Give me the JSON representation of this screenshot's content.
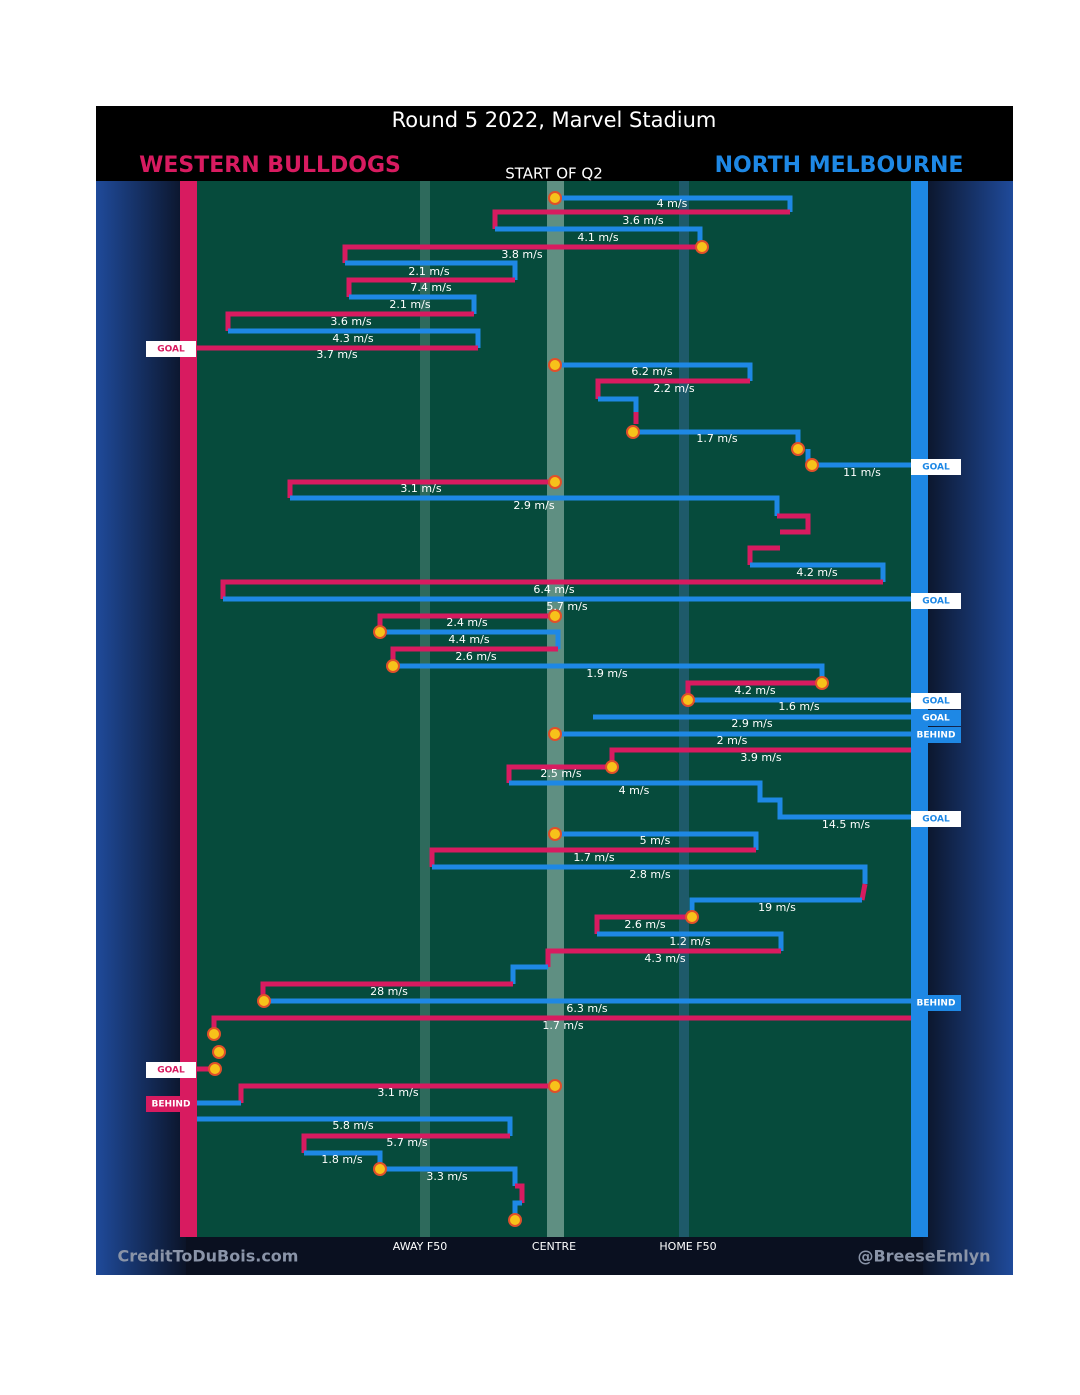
{
  "header": {
    "title": "Round 5 2022, Marvel Stadium",
    "left_team": "WESTERN BULLDOGS",
    "right_team": "NORTH MELBOURNE",
    "start": "START OF Q2"
  },
  "axis_labels": [
    "AWAY F50",
    "CENTRE",
    "HOME F50"
  ],
  "footer": {
    "left": "CreditToDuBois.com",
    "right": "@BreeseEmlyn"
  },
  "speeds": [
    "4 m/s",
    "3.6 m/s",
    "4.1 m/s",
    "3.8 m/s",
    "2.1 m/s",
    "7.4 m/s",
    "2.1 m/s",
    "3.6 m/s",
    "4.3 m/s",
    "3.7 m/s",
    "6.2 m/s",
    "2.2 m/s",
    "1.7 m/s",
    "11 m/s",
    "3.1 m/s",
    "2.9 m/s",
    "4.2 m/s",
    "6.4 m/s",
    "5.7 m/s",
    "2.4 m/s",
    "4.4 m/s",
    "2.6 m/s",
    "1.9 m/s",
    "4.2 m/s",
    "1.6 m/s",
    "2.9 m/s",
    "2 m/s",
    "3.9 m/s",
    "2.5 m/s",
    "4 m/s",
    "14.5 m/s",
    "5 m/s",
    "1.7 m/s",
    "2.8 m/s",
    "19 m/s",
    "2.6 m/s",
    "1.2 m/s",
    "4.3 m/s",
    "28 m/s",
    "6.3 m/s",
    "1.7 m/s",
    "3.1 m/s",
    "5.8 m/s",
    "5.7 m/s",
    "1.8 m/s",
    "3.3 m/s"
  ],
  "outcomes": [
    "GOAL",
    "GOAL",
    "GOAL",
    "GOAL",
    "GOAL",
    "BEHIND",
    "GOAL",
    "BEHIND",
    "GOAL",
    "BEHIND"
  ]
}
